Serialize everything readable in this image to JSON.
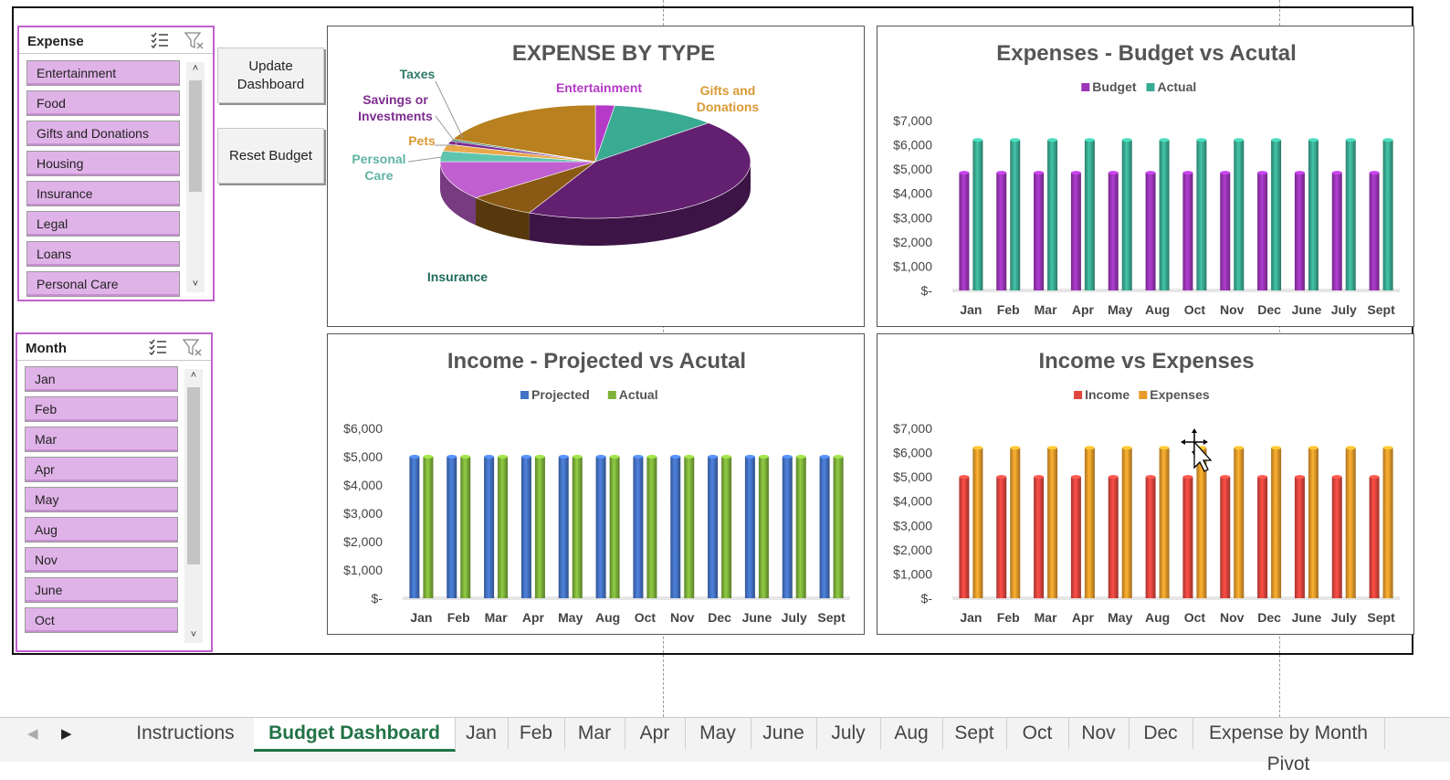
{
  "expense_slicer": {
    "title": "Expense",
    "items": [
      "Entertainment",
      "Food",
      "Gifts and Donations",
      "Housing",
      "Insurance",
      "Legal",
      "Loans",
      "Personal Care"
    ]
  },
  "month_slicer": {
    "title": "Month",
    "items": [
      "Jan",
      "Feb",
      "Mar",
      "Apr",
      "May",
      "Aug",
      "Nov",
      "June",
      "Oct"
    ]
  },
  "buttons": {
    "update": "Update Dashboard",
    "reset": "Reset Budget"
  },
  "colors": {
    "budget": "#9b35b8",
    "actual": "#3aab93",
    "projected": "#4472c4",
    "income_actual": "#7eb23a",
    "income": "#e0453e",
    "expenses": "#e89b2a",
    "slicer_item": "#e0b3e8",
    "slicer_border": "#c05fcf"
  },
  "chart_data": [
    {
      "type": "pie",
      "title": "EXPENSE BY TYPE",
      "slices": [
        {
          "name": "Entertainment",
          "value": 2,
          "color": "#b53ac8"
        },
        {
          "name": "Gifts and Donations",
          "value": 11,
          "color": "#3aab93"
        },
        {
          "name": "",
          "value": 44,
          "color": "#632071"
        },
        {
          "name": "",
          "value": 7,
          "color": "#8a5a14"
        },
        {
          "name": "Insurance",
          "value": 0,
          "color": "#1e6b5e"
        },
        {
          "name": "",
          "value": 11,
          "color": "#c05fcf"
        },
        {
          "name": "Personal Care",
          "value": 3,
          "color": "#5fc4ae"
        },
        {
          "name": "Pets",
          "value": 2,
          "color": "#e8a94a"
        },
        {
          "name": "Savings or Investments",
          "value": 1,
          "color": "#7d2c8f"
        },
        {
          "name": "Taxes",
          "value": 0.5,
          "color": "#2f7a69"
        },
        {
          "name": "",
          "value": 18.5,
          "color": "#b8801e"
        }
      ],
      "labels": [
        {
          "text": "Taxes",
          "color": "#2f7a69"
        },
        {
          "text": "Savings or Investments",
          "color": "#7d2c8f"
        },
        {
          "text": "Pets",
          "color": "#d99a35"
        },
        {
          "text": "Personal Care",
          "color": "#5fb4a3"
        },
        {
          "text": "Entertainment",
          "color": "#b53ac8"
        },
        {
          "text": "Gifts and Donations",
          "color": "#d99a35"
        },
        {
          "text": "Insurance",
          "color": "#1e6b5e"
        }
      ]
    },
    {
      "type": "bar",
      "title": "Expenses - Budget vs Acutal",
      "categories": [
        "Jan",
        "Feb",
        "Mar",
        "Apr",
        "May",
        "Aug",
        "Oct",
        "Nov",
        "Dec",
        "June",
        "July",
        "Sept"
      ],
      "series": [
        {
          "name": "Budget",
          "values": [
            4850,
            4850,
            4850,
            4850,
            4850,
            4850,
            4850,
            4850,
            4850,
            4850,
            4850,
            4850
          ],
          "color": "#9b35b8"
        },
        {
          "name": "Actual",
          "values": [
            6200,
            6200,
            6200,
            6200,
            6200,
            6200,
            6200,
            6200,
            6200,
            6200,
            6200,
            6200
          ],
          "color": "#3aab93"
        }
      ],
      "ylim": [
        0,
        7000
      ],
      "yticks": [
        "$-",
        "$1,000",
        "$2,000",
        "$3,000",
        "$4,000",
        "$5,000",
        "$6,000",
        "$7,000"
      ],
      "legend": "top"
    },
    {
      "type": "bar",
      "title": "Income - Projected vs Acutal",
      "categories": [
        "Jan",
        "Feb",
        "Mar",
        "Apr",
        "May",
        "Aug",
        "Oct",
        "Nov",
        "Dec",
        "June",
        "July",
        "Sept"
      ],
      "series": [
        {
          "name": "Projected",
          "values": [
            5000,
            5000,
            5000,
            5000,
            5000,
            5000,
            5000,
            5000,
            5000,
            5000,
            5000,
            5000
          ],
          "color": "#4472c4"
        },
        {
          "name": "Actual",
          "values": [
            5000,
            5000,
            5000,
            5000,
            5000,
            5000,
            5000,
            5000,
            5000,
            5000,
            5000,
            5000
          ],
          "color": "#7eb23a"
        }
      ],
      "ylim": [
        0,
        6000
      ],
      "yticks": [
        "$-",
        "$1,000",
        "$2,000",
        "$3,000",
        "$4,000",
        "$5,000",
        "$6,000"
      ],
      "legend": "top"
    },
    {
      "type": "bar",
      "title": "Income vs Expenses",
      "categories": [
        "Jan",
        "Feb",
        "Mar",
        "Apr",
        "May",
        "Aug",
        "Oct",
        "Nov",
        "Dec",
        "June",
        "July",
        "Sept"
      ],
      "series": [
        {
          "name": "Income",
          "values": [
            5000,
            5000,
            5000,
            5000,
            5000,
            5000,
            5000,
            5000,
            5000,
            5000,
            5000,
            5000
          ],
          "color": "#e0453e"
        },
        {
          "name": "Expenses",
          "values": [
            6200,
            6200,
            6200,
            6200,
            6200,
            6200,
            6200,
            6200,
            6200,
            6200,
            6200,
            6200
          ],
          "color": "#e89b2a"
        }
      ],
      "ylim": [
        0,
        7000
      ],
      "yticks": [
        "$-",
        "$1,000",
        "$2,000",
        "$3,000",
        "$4,000",
        "$5,000",
        "$6,000",
        "$7,000"
      ],
      "legend": "top"
    }
  ],
  "sheet_tabs": {
    "active": "Budget Dashboard",
    "items": [
      "Instructions",
      "Budget Dashboard",
      "Jan",
      "Feb",
      "Mar",
      "Apr",
      "May",
      "June",
      "July",
      "Aug",
      "Sept",
      "Oct",
      "Nov",
      "Dec",
      "Expense by Month Pivot"
    ]
  }
}
